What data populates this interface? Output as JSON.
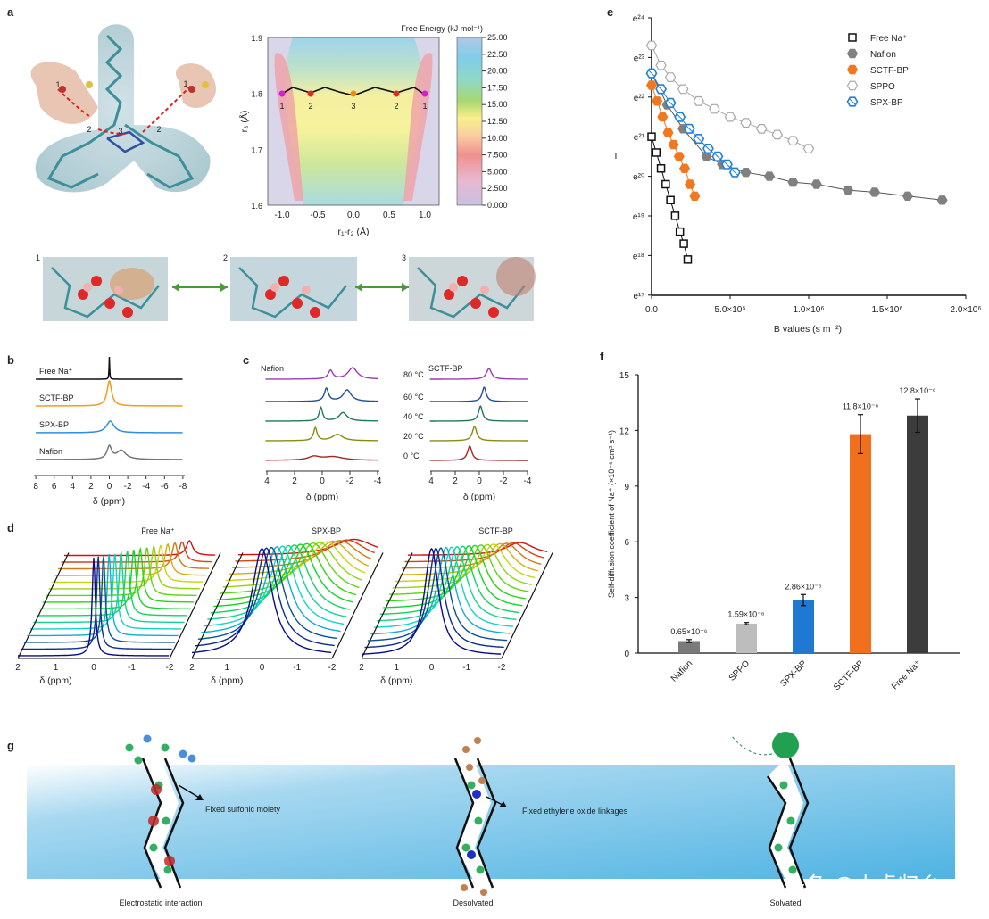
{
  "panel_labels": {
    "a": "a",
    "b": "b",
    "c": "c",
    "d": "d",
    "e": "e",
    "f": "f",
    "g": "g"
  },
  "panel_a": {
    "molecule_site_labels": [
      "1",
      "2",
      "3",
      "2",
      "1"
    ],
    "free_energy_title": "Free Energy (kJ mol⁻¹)",
    "colorbar_ticks": [
      "25.00",
      "22.50",
      "20.00",
      "17.50",
      "15.00",
      "12.50",
      "10.00",
      "7.500",
      "5.000",
      "2.500",
      "0.000"
    ],
    "x_ticks": [
      "-1.0",
      "-0.5",
      "0.0",
      "0.5",
      "1.0"
    ],
    "y_ticks": [
      "1.9",
      "1.8",
      "1.7",
      "1.6"
    ],
    "xlabel": "r₁-r₂ (Å)",
    "ylabel": "r₃ (Å)",
    "path_site_labels": [
      "1",
      "2",
      "3",
      "2",
      "1"
    ],
    "path_site_colors": [
      "#d020d0",
      "#e02828",
      "#f08a10",
      "#e02828",
      "#d020d0"
    ],
    "snapshot_labels": [
      "1",
      "2",
      "3"
    ]
  },
  "panel_g": {
    "annotation_sulfonic": "Fixed sulfonic moiety",
    "annotation_ether": "Fixed ethylene oxide linkages",
    "caption_1": "Electrostatic interaction",
    "caption_2": "Desolvated",
    "caption_3": "Solvated"
  },
  "watermark": "头条 @小虎归乡",
  "chart_data": [
    {
      "panel": "e",
      "type": "scatter",
      "xlabel": "B values (s m⁻²)",
      "ylabel": "I",
      "x_ticks": [
        "0.0",
        "5.0×10⁵",
        "1.0×10⁶",
        "1.5×10⁶",
        "2.0×10⁶"
      ],
      "xlim": [
        0,
        2000000
      ],
      "y_ticks": [
        "e²⁴",
        "e²³",
        "e²²",
        "e²¹",
        "e²⁰",
        "e¹⁹",
        "e¹⁸",
        "e¹⁷"
      ],
      "y_scale": "log (base e)",
      "legend_position": "top-right",
      "series": [
        {
          "name": "Free Na⁺",
          "marker": "open-square",
          "color": "#111111",
          "x": [
            0,
            30000,
            60000,
            90000,
            120000,
            150000,
            180000,
            205000,
            230000
          ],
          "y": [
            1320000000.0,
            884000000.0,
            592000000.0,
            397000000.0,
            266000000.0,
            179000000.0,
            120000000.0,
            88600000.0,
            59400000.0
          ]
        },
        {
          "name": "Nafion",
          "marker": "filled-hexagon",
          "color": "#808080",
          "x": [
            0,
            100000,
            200000,
            350000,
            450000,
            600000,
            750000,
            900000,
            1050000,
            1250000,
            1420000,
            1630000,
            1850000
          ],
          "y": [
            6530000000.0,
            2940000000.0,
            1610000000.0,
            800000000.0,
            655000000.0,
            536000000.0,
            485000000.0,
            418000000.0,
            397000000.0,
            342000000.0,
            325000000.0,
            294000000.0,
            266000000.0
          ]
        },
        {
          "name": "SCTF-BP",
          "marker": "filled-hexagon",
          "color": "#f07820",
          "x": [
            0,
            35000,
            70000,
            105000,
            140000,
            175000,
            210000,
            245000,
            275000
          ],
          "y": [
            4840000000.0,
            3240000000.0,
            2170000000.0,
            1460000000.0,
            1080000000.0,
            800000000.0,
            592000000.0,
            397000000.0,
            294000000.0
          ]
        },
        {
          "name": "SPPO",
          "marker": "open-pentagon-cross",
          "color": "#a8a8a8",
          "x": [
            0,
            60000,
            120000,
            200000,
            300000,
            400000,
            500000,
            600000,
            700000,
            800000,
            900000,
            1000000
          ],
          "y": [
            13200000000.0,
            7980000000.0,
            5910000000.0,
            4380000000.0,
            3240000000.0,
            2660000000.0,
            2170000000.0,
            1870000000.0,
            1610000000.0,
            1390000000.0,
            1190000000.0,
            977000000.0
          ]
        },
        {
          "name": "SPX-BP",
          "marker": "open-hexagon-cross",
          "color": "#2080d8",
          "x": [
            0,
            60000,
            120000,
            180000,
            240000,
            300000,
            360000,
            420000,
            480000,
            530000
          ],
          "y": [
            6530000000.0,
            4380000000.0,
            3090000000.0,
            2170000000.0,
            1610000000.0,
            1250000000.0,
            977000000.0,
            800000000.0,
            655000000.0,
            536000000.0
          ]
        }
      ]
    },
    {
      "panel": "f",
      "type": "bar",
      "ylabel": "Self-diffusion coefficient of Na⁺ (×10⁻⁶ cm² s⁻¹)",
      "ylim": [
        0,
        15
      ],
      "y_ticks": [
        "0",
        "3",
        "6",
        "9",
        "12",
        "15"
      ],
      "categories": [
        "Nafion",
        "SPPO",
        "SPX-BP",
        "SCTF-BP",
        "Free Na⁺"
      ],
      "values": [
        0.65,
        1.59,
        2.86,
        11.8,
        12.8
      ],
      "errors": [
        0.08,
        0.06,
        0.3,
        1.05,
        0.9
      ],
      "data_labels": [
        "0.65×10⁻⁶",
        "1.59×10⁻⁶",
        "2.86×10⁻⁶",
        "11.8×10⁻⁶",
        "12.8×10⁻⁶"
      ],
      "colors": [
        "#7a7a7a",
        "#bdbdbd",
        "#1f78d1",
        "#f07020",
        "#3c3c3c"
      ]
    },
    {
      "panel": "b",
      "type": "line",
      "xlabel": "δ (ppm)",
      "x_ticks": [
        "8",
        "6",
        "4",
        "2",
        "0",
        "-2",
        "-4",
        "-6",
        "-8"
      ],
      "xlim": [
        8,
        -8
      ],
      "series": [
        {
          "name": "Free Na⁺",
          "color": "#111111",
          "peaks": [
            {
              "center": 0,
              "width": 0.04,
              "height": 1.0
            }
          ]
        },
        {
          "name": "SCTF-BP",
          "color": "#f39a20",
          "peaks": [
            {
              "center": 0,
              "width": 0.3,
              "height": 1.0
            }
          ]
        },
        {
          "name": "SPX-BP",
          "color": "#2f8ee0",
          "peaks": [
            {
              "center": -0.1,
              "width": 0.5,
              "height": 0.5
            }
          ]
        },
        {
          "name": "Nafion",
          "color": "#777777",
          "peaks": [
            {
              "center": 0,
              "width": 0.3,
              "height": 0.55
            },
            {
              "center": -1.3,
              "width": 0.6,
              "height": 0.38
            }
          ]
        }
      ]
    },
    {
      "panel": "c",
      "type": "line",
      "xlabel": "δ (ppm)",
      "x_ticks": [
        "4",
        "2",
        "0",
        "-2",
        "-4"
      ],
      "xlim": [
        4,
        -4
      ],
      "temperatures": [
        "80 °C",
        "60 °C",
        "40 °C",
        "20 °C",
        "0 °C"
      ],
      "temperature_colors": [
        "#9a3ab0",
        "#1f4f9a",
        "#1f7a55",
        "#8a8a10",
        "#a02828"
      ],
      "subplots": [
        {
          "name": "Nafion",
          "traces": [
            [
              {
                "center": -0.6,
                "width": 0.2,
                "height": 0.6
              },
              {
                "center": -2.2,
                "width": 0.4,
                "height": 0.8
              }
            ],
            [
              {
                "center": -0.3,
                "width": 0.18,
                "height": 0.9
              },
              {
                "center": -1.8,
                "width": 0.35,
                "height": 0.8
              }
            ],
            [
              {
                "center": 0.1,
                "width": 0.15,
                "height": 0.95
              },
              {
                "center": -1.5,
                "width": 0.35,
                "height": 0.6
              }
            ],
            [
              {
                "center": 0.5,
                "width": 0.15,
                "height": 0.9
              },
              {
                "center": -1.1,
                "width": 0.45,
                "height": 0.45
              }
            ],
            [
              {
                "center": 0.6,
                "width": 0.5,
                "height": 0.25
              },
              {
                "center": -0.8,
                "width": 0.9,
                "height": 0.25
              }
            ]
          ]
        },
        {
          "name": "SCTF-BP",
          "traces": [
            [
              {
                "center": -0.8,
                "width": 0.25,
                "height": 0.75
              }
            ],
            [
              {
                "center": -0.4,
                "width": 0.2,
                "height": 1.0
              }
            ],
            [
              {
                "center": -0.1,
                "width": 0.2,
                "height": 1.05
              }
            ],
            [
              {
                "center": 0.4,
                "width": 0.22,
                "height": 1.0
              }
            ],
            [
              {
                "center": 0.8,
                "width": 0.22,
                "height": 1.0
              }
            ]
          ]
        }
      ]
    },
    {
      "panel": "d",
      "type": "line",
      "xlabel": "δ (ppm)",
      "x_ticks": [
        "2",
        "1",
        "0",
        "-1",
        "-2"
      ],
      "xlim": [
        2,
        -2
      ],
      "subplots": [
        {
          "name": "Free Na⁺",
          "peak_start": 0,
          "peak_end": -1.3,
          "width": 0.05,
          "height_start": 1.0,
          "height_end": 0.15
        },
        {
          "name": "SPX-BP",
          "peak_start": 0,
          "peak_end": -1.3,
          "width": 0.35,
          "height_start": 1.0,
          "height_end": 0.15
        },
        {
          "name": "SCTF-BP",
          "peak_start": 0,
          "peak_end": -1.2,
          "width": 0.25,
          "height_start": 1.0,
          "height_end": 0.12
        }
      ]
    }
  ]
}
